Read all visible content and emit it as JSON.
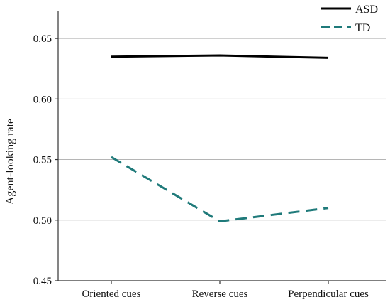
{
  "chart_data": {
    "type": "line",
    "title": "",
    "xlabel": "",
    "ylabel": "Agent-looking rate",
    "categories": [
      "Oriented cues",
      "Reverse cues",
      "Perpendicular cues"
    ],
    "ylim": [
      0.45,
      0.67
    ],
    "yticks": [
      "0.45",
      "0.50",
      "0.55",
      "0.60",
      "0.65"
    ],
    "grid": "horizontal",
    "legend_position": "top-right",
    "series": [
      {
        "name": "ASD",
        "values": [
          0.635,
          0.636,
          0.634
        ],
        "color": "#000000",
        "style": "solid"
      },
      {
        "name": "TD",
        "values": [
          0.552,
          0.499,
          0.51
        ],
        "color": "#1f7a7a",
        "style": "dashed"
      }
    ]
  }
}
